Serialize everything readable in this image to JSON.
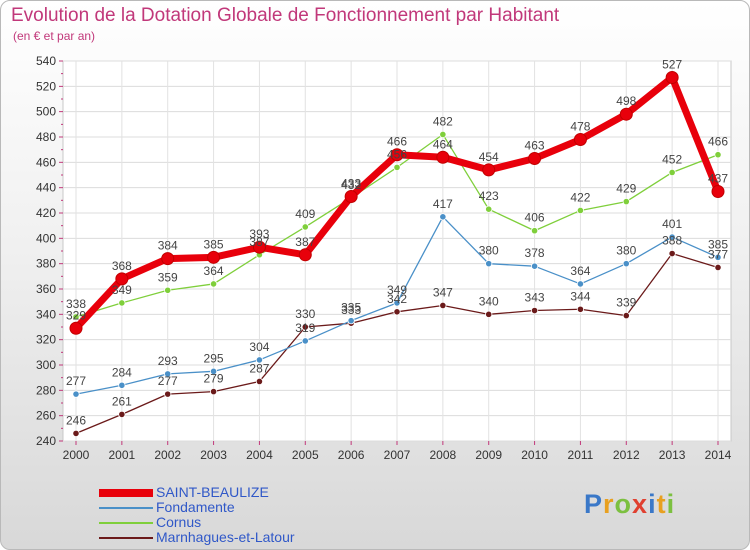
{
  "chart_data": {
    "type": "line",
    "title": "Evolution de la Dotation Globale de Fonctionnement par Habitant",
    "subtitle": "(en € et par an)",
    "x": [
      "2000",
      "2001",
      "2002",
      "2003",
      "2004",
      "2005",
      "2006",
      "2007",
      "2008",
      "2009",
      "2010",
      "2011",
      "2012",
      "2013",
      "2014"
    ],
    "ylim": [
      240,
      540
    ],
    "yticks": [
      240,
      260,
      280,
      300,
      320,
      340,
      360,
      380,
      400,
      420,
      440,
      460,
      480,
      500,
      520,
      540
    ],
    "grid": true,
    "legend_position": "bottom-left",
    "series": [
      {
        "name": "SAINT-BEAULIZE",
        "color": "#e8000b",
        "values": [
          329,
          368,
          384,
          385,
          393,
          387,
          433,
          466,
          464,
          454,
          463,
          478,
          498,
          527,
          437
        ]
      },
      {
        "name": "Fondamente",
        "color": "#4a90c8",
        "values": [
          277,
          284,
          293,
          295,
          304,
          319,
          335,
          349,
          417,
          380,
          378,
          364,
          380,
          401,
          385
        ]
      },
      {
        "name": "Cornus",
        "color": "#7fcf3b",
        "values": [
          338,
          349,
          359,
          364,
          387,
          409,
          432,
          456,
          482,
          423,
          406,
          422,
          429,
          452,
          466
        ]
      },
      {
        "name": "Marnhagues-et-Latour",
        "color": "#6b1a1a",
        "values": [
          246,
          261,
          277,
          279,
          287,
          330,
          333,
          342,
          347,
          340,
          343,
          344,
          339,
          388,
          377
        ]
      }
    ]
  },
  "logo": {
    "text": "Proxiti",
    "colors": [
      "#3a78c8",
      "#e8a020",
      "#7cc040",
      "#e04030",
      "#3a78c8",
      "#e8a020",
      "#7cc040"
    ]
  }
}
